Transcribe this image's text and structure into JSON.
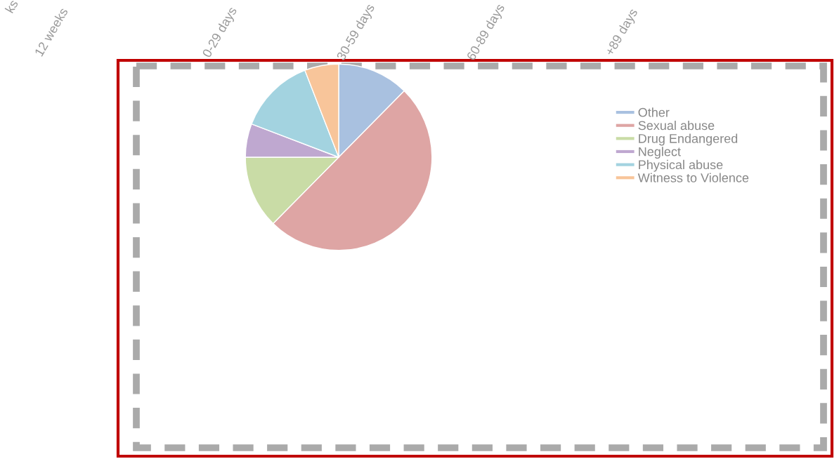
{
  "chart_data": {
    "type": "pie",
    "categories": [
      "Other",
      "Sexual abuse",
      "Drug Endangered",
      "Neglect",
      "Physical abuse",
      "Witness to Violence"
    ],
    "values": [
      12.4,
      50,
      12.6,
      5.8,
      13.3,
      5.9
    ],
    "colors": [
      "#a9c1e0",
      "#dea5a4",
      "#c9dca6",
      "#bfa8d0",
      "#a3d3e0",
      "#f8c59a"
    ],
    "legend": "right",
    "annotations": [
      "ks",
      "12 weeks",
      "0-29 days",
      "30-59 days",
      "60-89 days",
      "+89 days"
    ]
  }
}
